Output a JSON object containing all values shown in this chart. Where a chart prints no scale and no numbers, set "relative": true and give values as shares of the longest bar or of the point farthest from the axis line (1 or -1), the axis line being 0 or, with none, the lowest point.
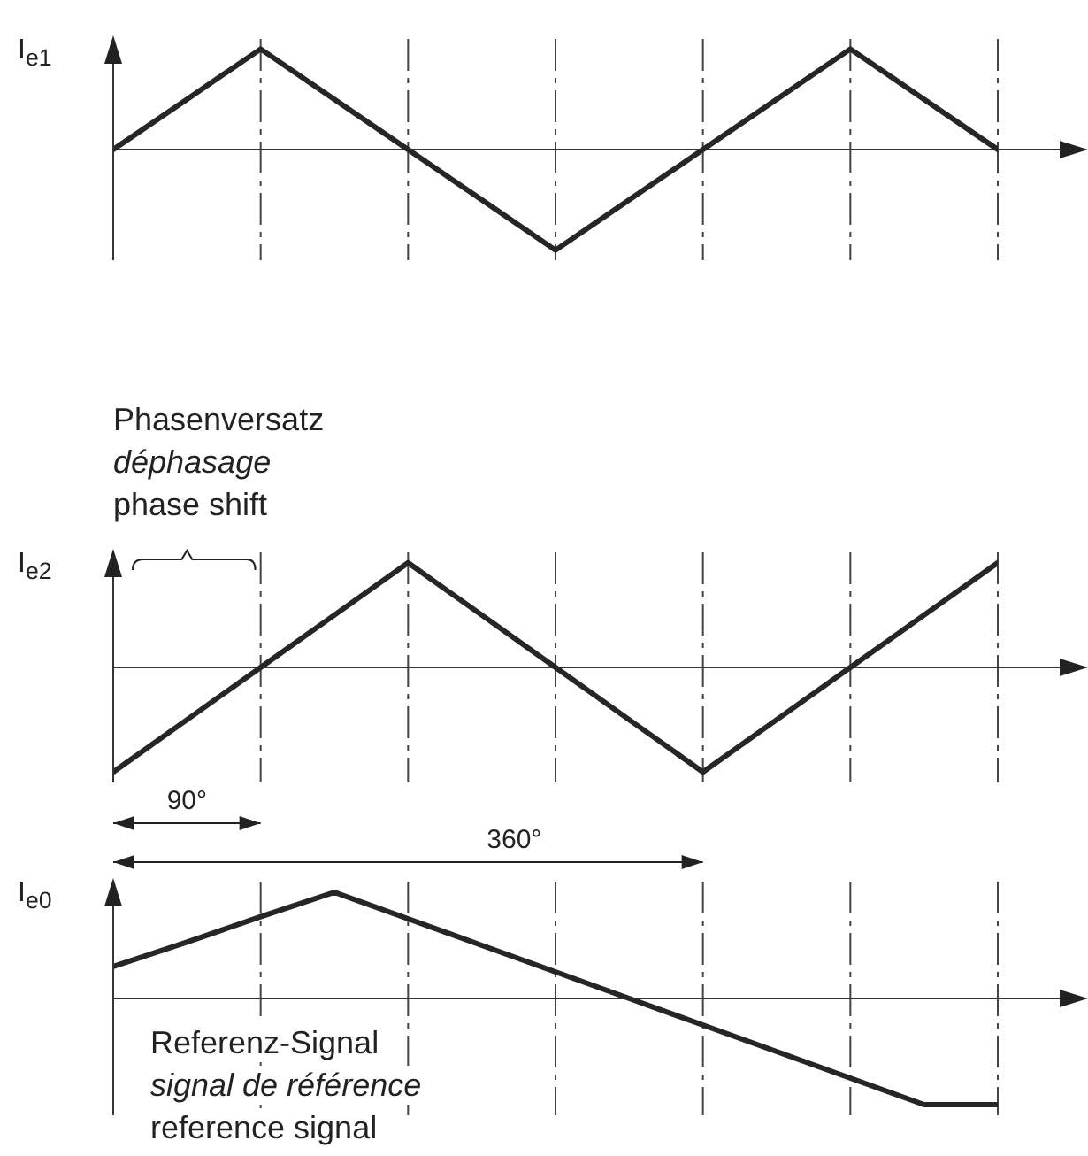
{
  "chart_data": [
    {
      "type": "line",
      "ylabel": "I$_{e1}$",
      "relative": true,
      "tick_labels": false,
      "grid": "x",
      "categories": [
        null,
        null,
        null,
        null,
        null,
        null,
        null,
        null,
        null,
        null,
        null,
        null,
        null
      ],
      "series": [
        {
          "color": "#262626",
          "values": [
            0,
            0.5,
            1,
            0.5,
            0,
            -0.5,
            -1,
            -0.5,
            0,
            0.5,
            1,
            0.5,
            0
          ]
        }
      ]
    },
    {
      "type": "line",
      "ylabel": "I$_{e2}$",
      "relative": true,
      "tick_labels": false,
      "grid": "x",
      "categories": [
        null,
        null,
        null,
        null,
        null,
        null,
        null,
        null,
        null,
        null,
        null,
        null,
        null
      ],
      "series": [
        {
          "color": "#262626",
          "values": [
            -1,
            -0.5,
            0,
            0.5,
            1,
            0.5,
            0,
            -0.5,
            -1,
            -0.5,
            0,
            0.5,
            1
          ]
        }
      ],
      "annotations": [
        "Phasenversatz",
        "déphasage",
        "phase shift",
        "90°",
        "360°"
      ]
    },
    {
      "type": "line",
      "ylabel": "I$_{e0}$",
      "relative": true,
      "tick_labels": false,
      "grid": "x",
      "categories": [
        null,
        null,
        null,
        null,
        null,
        null,
        null,
        null,
        null,
        null,
        null,
        null,
        null
      ],
      "series": [
        {
          "color": "#262626",
          "values": [
            0.3,
            0.53,
            0.77,
            1,
            0.75,
            0.5,
            0.25,
            0,
            -0.25,
            -0.5,
            -0.75,
            -1,
            -1
          ]
        }
      ],
      "annotations": [
        "Referenz-Signal",
        "signal de référence",
        "reference signal"
      ]
    }
  ]
}
